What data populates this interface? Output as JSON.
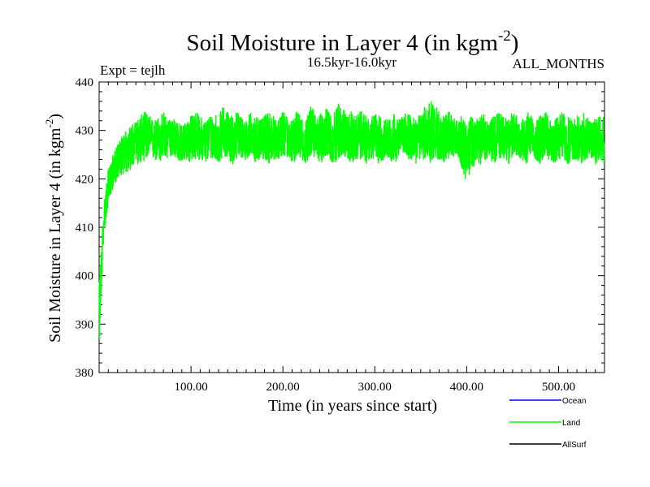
{
  "chart_data": {
    "type": "line",
    "title": "Soil Moisture in Layer 4 (in kgm",
    "title_sup": "-2",
    "title_close": ")",
    "experiment": "Expt = tejlh",
    "period": "16.5kyr-16.0kyr",
    "months": "ALL_MONTHS",
    "xlabel": "Time (in years since start)",
    "ylabel": "Soil Moisture in Layer 4 (in kgm",
    "ylabel_sup": "-2",
    "ylabel_close": ")",
    "xlim": [
      0,
      550
    ],
    "ylim": [
      380,
      440
    ],
    "x_ticks": [
      100,
      200,
      300,
      400,
      500
    ],
    "x_tick_labels": [
      "100.00",
      "200.00",
      "300.00",
      "400.00",
      "500.00"
    ],
    "y_ticks": [
      380,
      390,
      400,
      410,
      420,
      430,
      440
    ],
    "y_tick_labels": [
      "380",
      "390",
      "400",
      "410",
      "420",
      "430",
      "440"
    ],
    "grid": false,
    "legend_position": "bottom-right",
    "legend": [
      {
        "name": "Ocean",
        "color": "#0000ff"
      },
      {
        "name": "Land",
        "color": "#00ff00"
      },
      {
        "name": "AllSurf",
        "color": "#000000"
      }
    ],
    "series": [
      {
        "name": "Land",
        "color": "#00ff00",
        "x_step": 5,
        "x": [
          0,
          5,
          10,
          15,
          20,
          25,
          30,
          35,
          40,
          45,
          50,
          55,
          60,
          65,
          70,
          75,
          80,
          85,
          90,
          95,
          100,
          105,
          110,
          115,
          120,
          125,
          130,
          135,
          140,
          145,
          150,
          155,
          160,
          165,
          170,
          175,
          180,
          185,
          190,
          195,
          200,
          205,
          210,
          215,
          220,
          225,
          230,
          235,
          240,
          245,
          250,
          255,
          260,
          265,
          270,
          275,
          280,
          285,
          290,
          295,
          300,
          305,
          310,
          315,
          320,
          325,
          330,
          335,
          340,
          345,
          350,
          355,
          360,
          365,
          370,
          375,
          380,
          385,
          390,
          395,
          400,
          405,
          410,
          415,
          420,
          425,
          430,
          435,
          440,
          445,
          450,
          455,
          460,
          465,
          470,
          475,
          480,
          485,
          490,
          495,
          500,
          505,
          510,
          515,
          520,
          525,
          530,
          535,
          540,
          545,
          550
        ],
        "values_low": [
          384,
          408,
          415,
          418,
          420,
          421,
          421,
          422,
          423,
          423,
          424,
          424,
          424,
          423,
          424,
          424,
          425,
          424,
          423,
          424,
          423,
          424,
          424,
          423,
          424,
          424,
          423,
          425,
          424,
          423,
          424,
          424,
          424,
          424,
          423,
          424,
          424,
          423,
          424,
          424,
          425,
          424,
          423,
          424,
          424,
          423,
          425,
          424,
          423,
          424,
          424,
          423,
          424,
          425,
          424,
          423,
          424,
          424,
          423,
          424,
          424,
          423,
          424,
          424,
          423,
          424,
          425,
          424,
          424,
          423,
          424,
          424,
          423,
          424,
          424,
          423,
          424,
          424,
          425,
          422,
          419,
          422,
          423,
          423,
          424,
          424,
          423,
          424,
          424,
          423,
          424,
          425,
          424,
          423,
          424,
          424,
          423,
          424,
          424,
          423,
          424,
          424,
          423,
          424,
          424,
          423,
          424,
          424,
          423,
          424,
          423
        ],
        "values_high": [
          398,
          415,
          422,
          425,
          427,
          429,
          430,
          431,
          432,
          433,
          434,
          433,
          432,
          433,
          434,
          432,
          433,
          432,
          431,
          432,
          433,
          434,
          433,
          432,
          433,
          434,
          433,
          435,
          434,
          433,
          434,
          433,
          432,
          434,
          433,
          432,
          433,
          434,
          433,
          432,
          434,
          433,
          432,
          434,
          433,
          432,
          435,
          434,
          433,
          435,
          434,
          433,
          436,
          435,
          433,
          434,
          433,
          434,
          433,
          432,
          434,
          433,
          432,
          433,
          434,
          432,
          433,
          434,
          433,
          432,
          434,
          435,
          437,
          436,
          434,
          433,
          434,
          433,
          432,
          433,
          431,
          433,
          432,
          434,
          433,
          432,
          433,
          434,
          433,
          432,
          434,
          433,
          432,
          434,
          433,
          432,
          433,
          434,
          433,
          432,
          433,
          434,
          433,
          432,
          433,
          434,
          433,
          432,
          433,
          434,
          433
        ],
        "values_mean": [
          390,
          411,
          418,
          421,
          424,
          425,
          426,
          427,
          428,
          428,
          429,
          428,
          428,
          428,
          429,
          428,
          429,
          428,
          427,
          428,
          428,
          429,
          428,
          428,
          429,
          429,
          428,
          430,
          429,
          428,
          429,
          429,
          428,
          429,
          428,
          428,
          429,
          429,
          428,
          428,
          429,
          429,
          428,
          429,
          429,
          428,
          430,
          429,
          428,
          429,
          429,
          428,
          430,
          430,
          429,
          428,
          429,
          429,
          428,
          428,
          429,
          428,
          428,
          429,
          429,
          428,
          429,
          429,
          429,
          428,
          429,
          429,
          430,
          430,
          429,
          428,
          429,
          429,
          428,
          428,
          426,
          428,
          428,
          429,
          428,
          428,
          428,
          429,
          429,
          428,
          429,
          429,
          428,
          429,
          429,
          428,
          429,
          429,
          428,
          428,
          429,
          429,
          428,
          428,
          429,
          429,
          428,
          428,
          428,
          429,
          428
        ]
      }
    ]
  }
}
